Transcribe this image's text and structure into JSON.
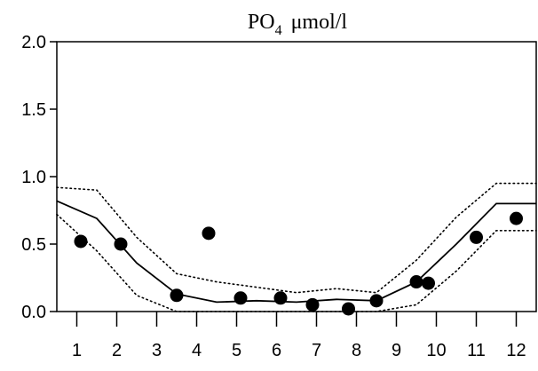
{
  "chart_data": {
    "type": "scatter",
    "title": {
      "main": "PO",
      "subscript": "4",
      "unit": "μmol/l"
    },
    "xlabel": "",
    "ylabel": "",
    "xlim": [
      0.5,
      12.5
    ],
    "ylim": [
      0,
      2.0
    ],
    "x_ticks": [
      1,
      2,
      3,
      4,
      5,
      6,
      7,
      8,
      9,
      10,
      11,
      12
    ],
    "x_tick_labels": [
      "1",
      "2",
      "3",
      "4",
      "5",
      "6",
      "7",
      "8",
      "9",
      "10",
      "11",
      "12"
    ],
    "y_ticks": [
      0.0,
      0.5,
      1.0,
      1.5,
      2.0
    ],
    "y_tick_labels": [
      "0.0",
      "0.5",
      "1.0",
      "1.5",
      "2.0"
    ],
    "grid": false,
    "series": [
      {
        "style": "points",
        "x": [
          1.1,
          2.1,
          3.5,
          4.3,
          5.1,
          6.1,
          6.9,
          7.8,
          8.5,
          9.5,
          9.8,
          11.0,
          12.0
        ],
        "y": [
          0.52,
          0.5,
          0.12,
          0.58,
          0.1,
          0.1,
          0.05,
          0.02,
          0.08,
          0.22,
          0.21,
          0.55,
          0.69
        ]
      },
      {
        "style": "solid-line",
        "x": [
          0.5,
          1.5,
          2.5,
          3.5,
          4.5,
          5.5,
          6.5,
          7.5,
          8.5,
          9.5,
          10.5,
          11.5,
          12.5
        ],
        "y": [
          0.82,
          0.69,
          0.36,
          0.13,
          0.07,
          0.08,
          0.07,
          0.09,
          0.08,
          0.22,
          0.5,
          0.8,
          0.8
        ]
      },
      {
        "style": "dotted-line",
        "x": [
          0.5,
          1.5,
          2.5,
          3.5,
          4.5,
          5.5,
          6.5,
          7.5,
          8.5,
          9.5,
          10.5,
          11.5,
          12.5
        ],
        "y": [
          0.92,
          0.9,
          0.55,
          0.28,
          0.22,
          0.18,
          0.14,
          0.17,
          0.14,
          0.38,
          0.7,
          0.95,
          0.95
        ]
      },
      {
        "style": "dotted-line",
        "x": [
          0.5,
          1.5,
          2.5,
          3.5,
          4.5,
          5.5,
          6.5,
          7.5,
          8.5,
          9.5,
          10.5,
          11.5,
          12.5
        ],
        "y": [
          0.72,
          0.45,
          0.12,
          0.0,
          0.0,
          0.0,
          0.0,
          0.0,
          0.0,
          0.05,
          0.3,
          0.6,
          0.6
        ]
      }
    ]
  }
}
